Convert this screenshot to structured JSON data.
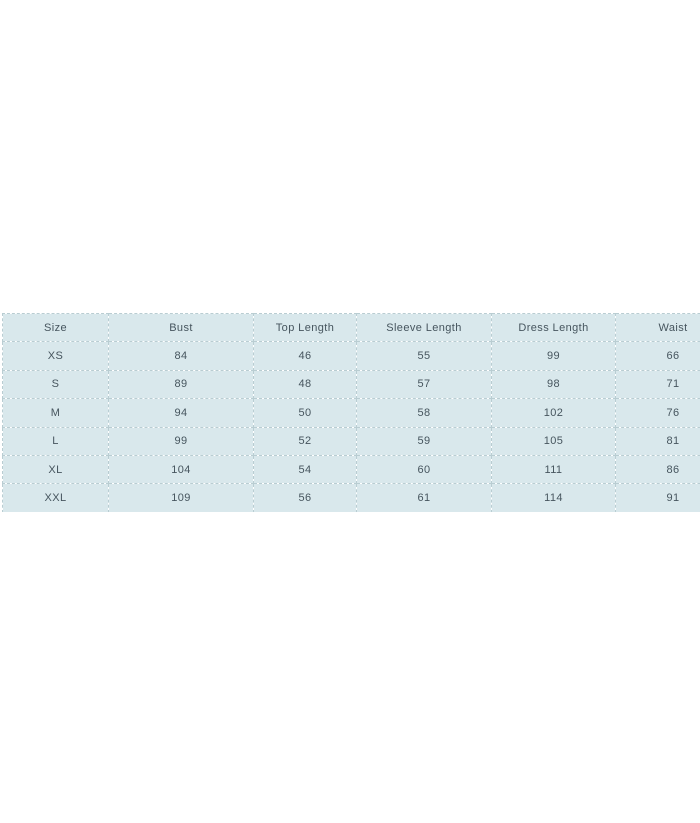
{
  "page": {
    "background_color": "#ffffff"
  },
  "size_chart": {
    "columns": [
      "Size",
      "Bust",
      "Top Length",
      "Sleeve Length",
      "Dress Length",
      "Waist"
    ],
    "rows": [
      {
        "size": "XS",
        "bust": "84",
        "top_length": "46",
        "sleeve_length": "55",
        "dress_length": "99",
        "waist": "66"
      },
      {
        "size": "S",
        "bust": "89",
        "top_length": "48",
        "sleeve_length": "57",
        "dress_length": "98",
        "waist": "71"
      },
      {
        "size": "M",
        "bust": "94",
        "top_length": "50",
        "sleeve_length": "58",
        "dress_length": "102",
        "waist": "76"
      },
      {
        "size": "L",
        "bust": "99",
        "top_length": "52",
        "sleeve_length": "59",
        "dress_length": "105",
        "waist": "81"
      },
      {
        "size": "XL",
        "bust": "104",
        "top_length": "54",
        "sleeve_length": "60",
        "dress_length": "111",
        "waist": "86"
      },
      {
        "size": "XXL",
        "bust": "109",
        "top_length": "56",
        "sleeve_length": "61",
        "dress_length": "114",
        "waist": "91"
      }
    ],
    "colors": {
      "cell_background": "#d9e8ec",
      "cell_border": "#b9cdd2",
      "text": "#46555e"
    }
  },
  "chart_data": {
    "type": "table",
    "title": "",
    "columns": [
      "Size",
      "Bust",
      "Top Length",
      "Sleeve Length",
      "Dress Length",
      "Waist"
    ],
    "rows": [
      [
        "XS",
        84,
        46,
        55,
        99,
        66
      ],
      [
        "S",
        89,
        48,
        57,
        98,
        71
      ],
      [
        "M",
        94,
        50,
        58,
        102,
        76
      ],
      [
        "L",
        99,
        52,
        59,
        105,
        81
      ],
      [
        "XL",
        104,
        54,
        60,
        111,
        86
      ],
      [
        "XXL",
        109,
        56,
        61,
        114,
        91
      ]
    ]
  }
}
